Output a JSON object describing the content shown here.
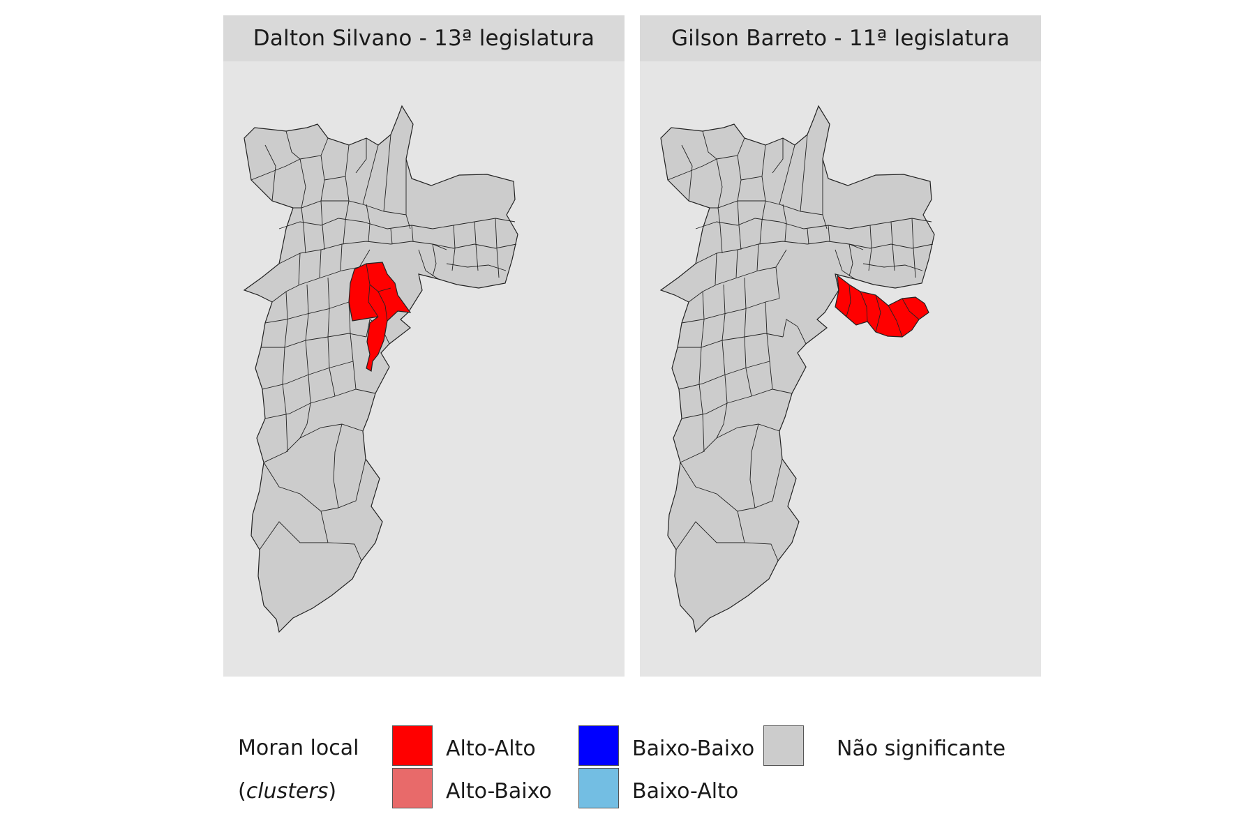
{
  "panels": [
    {
      "title": "Dalton Silvano - 13ª legislatura",
      "highlight": "central"
    },
    {
      "title": "Gilson Barreto - 11ª legislatura",
      "highlight": "east"
    }
  ],
  "legend": {
    "title_line1": "Moran local",
    "title_line2_open": "(",
    "title_line2_em": "clusters",
    "title_line2_close": ")",
    "items": [
      {
        "label": "Alto-Alto",
        "color": "#ff0000"
      },
      {
        "label": "Alto-Baixo",
        "color": "#e86a6a"
      },
      {
        "label": "Baixo-Baixo",
        "color": "#0000ff"
      },
      {
        "label": "Baixo-Alto",
        "color": "#73bee3"
      },
      {
        "label": "Não significante",
        "color": "#cccccc"
      }
    ]
  },
  "colors": {
    "panel_bg": "#e5e5e5",
    "strip_bg": "#d9d9d9",
    "region_fill": "#cccccc",
    "border": "#222222"
  }
}
